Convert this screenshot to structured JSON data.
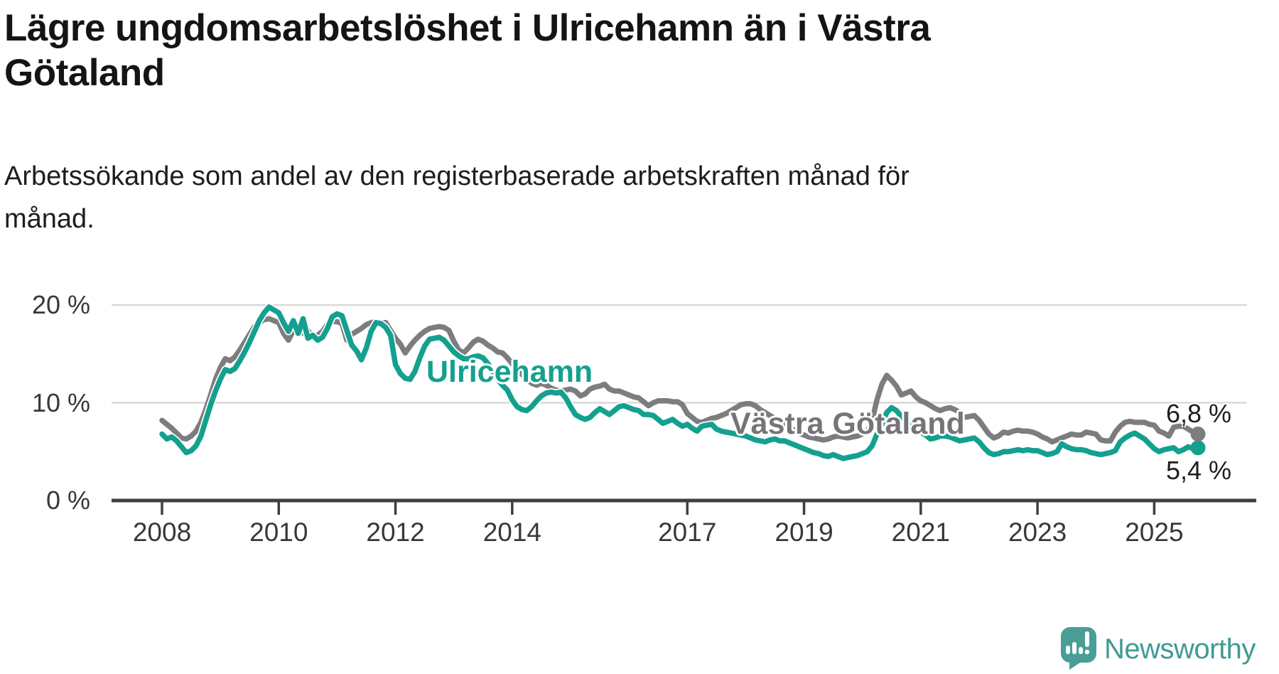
{
  "title": "Lägre ungdomsarbetslöshet i Ulricehamn än i Västra Götaland",
  "subtitle": "Arbetssökande som andel av den registerbaserade arbetskraften månad för månad.",
  "colors": {
    "background": "#ffffff",
    "title_text": "#141414",
    "subtitle_text": "#1d1d1d",
    "axis_text": "#383838",
    "grid": "#d8d8d8",
    "axis": "#3f3f3f",
    "ulricehamn": "#14a08f",
    "vastra_gotaland": "#7d7d7f",
    "vastra_gotaland_label": "#757578",
    "end_label_text": "#1d1d1d",
    "logo_teal": "#4a9e98",
    "logo_text_teal": "#3f9b94"
  },
  "chart_data": {
    "type": "line",
    "frequency": "monthly",
    "x_start_year": 2008,
    "x_start_month": 1,
    "x_end_year": 2025,
    "x_end_month": 10,
    "x_tick_labels": [
      "2008",
      "2010",
      "2012",
      "2014",
      "2017",
      "2019",
      "2021",
      "2023",
      "2025"
    ],
    "y_ticks": [
      0,
      10,
      20
    ],
    "y_tick_labels": [
      "0 %",
      "10 %",
      "20 %"
    ],
    "ylim": [
      0,
      21
    ],
    "grid": "horizontal",
    "legend_position": "inline-labels",
    "series": [
      {
        "name": "Ulricehamn",
        "color": "#14a08f",
        "end_label": "5,4 %",
        "values": [
          6.8,
          6.3,
          6.5,
          6.1,
          5.5,
          4.9,
          5.1,
          5.6,
          6.6,
          8.2,
          9.8,
          11.2,
          12.4,
          13.4,
          13.2,
          13.5,
          14.3,
          15.2,
          16.2,
          17.3,
          18.4,
          19.2,
          19.8,
          19.5,
          19.2,
          18.2,
          17.3,
          18.4,
          17.1,
          18.6,
          16.6,
          16.9,
          16.4,
          16.7,
          17.6,
          18.8,
          19.1,
          18.9,
          17.4,
          15.9,
          15.3,
          14.4,
          15.6,
          17.3,
          18.2,
          18.1,
          17.7,
          16.9,
          13.9,
          13.0,
          12.5,
          12.4,
          13.2,
          14.6,
          15.8,
          16.5,
          16.6,
          16.7,
          16.4,
          15.8,
          15.2,
          14.8,
          14.5,
          14.5,
          14.7,
          14.8,
          14.6,
          14.0,
          13.2,
          12.4,
          11.8,
          11.3,
          10.3,
          9.6,
          9.3,
          9.2,
          9.6,
          10.2,
          10.7,
          11.0,
          11.1,
          11.0,
          11.1,
          10.5,
          9.6,
          8.8,
          8.5,
          8.3,
          8.5,
          9.0,
          9.4,
          9.1,
          8.8,
          9.2,
          9.6,
          9.7,
          9.5,
          9.3,
          9.2,
          8.8,
          8.8,
          8.7,
          8.3,
          7.9,
          8.1,
          8.3,
          7.9,
          7.6,
          7.8,
          7.4,
          7.1,
          7.6,
          7.7,
          7.8,
          7.3,
          7.1,
          7.0,
          6.9,
          6.8,
          6.7,
          6.6,
          6.4,
          6.2,
          6.1,
          6.0,
          6.2,
          6.3,
          6.1,
          6.1,
          5.9,
          5.7,
          5.5,
          5.3,
          5.1,
          4.9,
          4.8,
          4.6,
          4.5,
          4.7,
          4.5,
          4.3,
          4.4,
          4.5,
          4.6,
          4.8,
          5.0,
          5.6,
          6.8,
          7.8,
          9.0,
          9.5,
          9.2,
          8.6,
          8.2,
          7.8,
          7.5,
          7.0,
          6.7,
          6.3,
          6.4,
          6.6,
          6.6,
          6.5,
          6.3,
          6.1,
          6.2,
          6.3,
          6.4,
          6.0,
          5.4,
          4.9,
          4.7,
          4.8,
          5.0,
          5.0,
          5.1,
          5.2,
          5.1,
          5.2,
          5.1,
          5.1,
          4.9,
          4.7,
          4.8,
          5.0,
          5.8,
          5.5,
          5.3,
          5.2,
          5.2,
          5.1,
          4.9,
          4.8,
          4.7,
          4.8,
          4.9,
          5.1,
          6.0,
          6.4,
          6.7,
          6.9,
          6.6,
          6.3,
          5.8,
          5.3,
          5.0,
          5.2,
          5.3,
          5.4,
          5.0,
          5.2,
          5.5,
          5.3,
          5.4
        ]
      },
      {
        "name": "Västra Götaland",
        "color": "#7d7d7f",
        "end_label": "6,8 %",
        "values": [
          8.2,
          7.8,
          7.4,
          6.9,
          6.4,
          6.3,
          6.6,
          7.1,
          8.0,
          9.3,
          10.8,
          12.4,
          13.6,
          14.5,
          14.3,
          14.7,
          15.4,
          16.2,
          17.0,
          17.8,
          18.2,
          18.5,
          18.6,
          18.4,
          18.2,
          17.1,
          16.4,
          17.4,
          17.6,
          17.1,
          17.4,
          16.6,
          16.9,
          17.3,
          18.0,
          18.3,
          18.3,
          18.1,
          16.4,
          17.0,
          17.3,
          17.6,
          18.0,
          18.2,
          18.3,
          18.2,
          18.2,
          17.4,
          16.6,
          16.0,
          15.1,
          15.8,
          16.4,
          16.9,
          17.3,
          17.6,
          17.7,
          17.8,
          17.7,
          17.4,
          16.3,
          15.4,
          15.1,
          15.6,
          16.2,
          16.5,
          16.3,
          15.9,
          15.6,
          15.2,
          15.1,
          14.6,
          14.0,
          13.4,
          12.9,
          12.4,
          12.0,
          11.8,
          12.0,
          11.8,
          11.5,
          11.3,
          11.2,
          11.3,
          11.4,
          11.2,
          10.7,
          10.9,
          11.4,
          11.6,
          11.7,
          11.9,
          11.4,
          11.2,
          11.2,
          11.0,
          10.8,
          10.6,
          10.5,
          10.1,
          9.7,
          10.0,
          10.2,
          10.2,
          10.2,
          10.1,
          10.1,
          9.8,
          8.9,
          8.5,
          8.1,
          8.0,
          8.2,
          8.4,
          8.5,
          8.7,
          8.9,
          9.2,
          9.5,
          9.8,
          9.9,
          9.9,
          9.7,
          9.3,
          9.0,
          8.7,
          8.4,
          8.1,
          7.8,
          7.5,
          7.2,
          6.9,
          6.7,
          6.5,
          6.4,
          6.3,
          6.2,
          6.3,
          6.5,
          6.6,
          6.5,
          6.4,
          6.5,
          6.6,
          6.8,
          7.0,
          8.2,
          10.3,
          11.9,
          12.8,
          12.3,
          11.7,
          10.8,
          11.0,
          11.2,
          10.6,
          10.2,
          10.0,
          9.7,
          9.4,
          9.2,
          9.4,
          9.5,
          9.3,
          9.0,
          8.5,
          8.6,
          8.7,
          8.2,
          7.5,
          6.8,
          6.4,
          6.6,
          7.0,
          6.9,
          7.1,
          7.2,
          7.1,
          7.1,
          7.0,
          6.8,
          6.5,
          6.3,
          6.0,
          6.2,
          6.4,
          6.6,
          6.8,
          6.7,
          6.7,
          7.0,
          6.9,
          6.8,
          6.2,
          6.1,
          6.1,
          7.0,
          7.6,
          8.0,
          8.1,
          8.0,
          8.0,
          8.0,
          7.8,
          7.7,
          7.1,
          6.9,
          6.6,
          7.5,
          7.6,
          7.6,
          7.3,
          7.0,
          6.8
        ]
      }
    ]
  },
  "logo": {
    "text": "Newsworthy",
    "icon": "newsworthy-speech-bubble-bar-chart-icon"
  }
}
